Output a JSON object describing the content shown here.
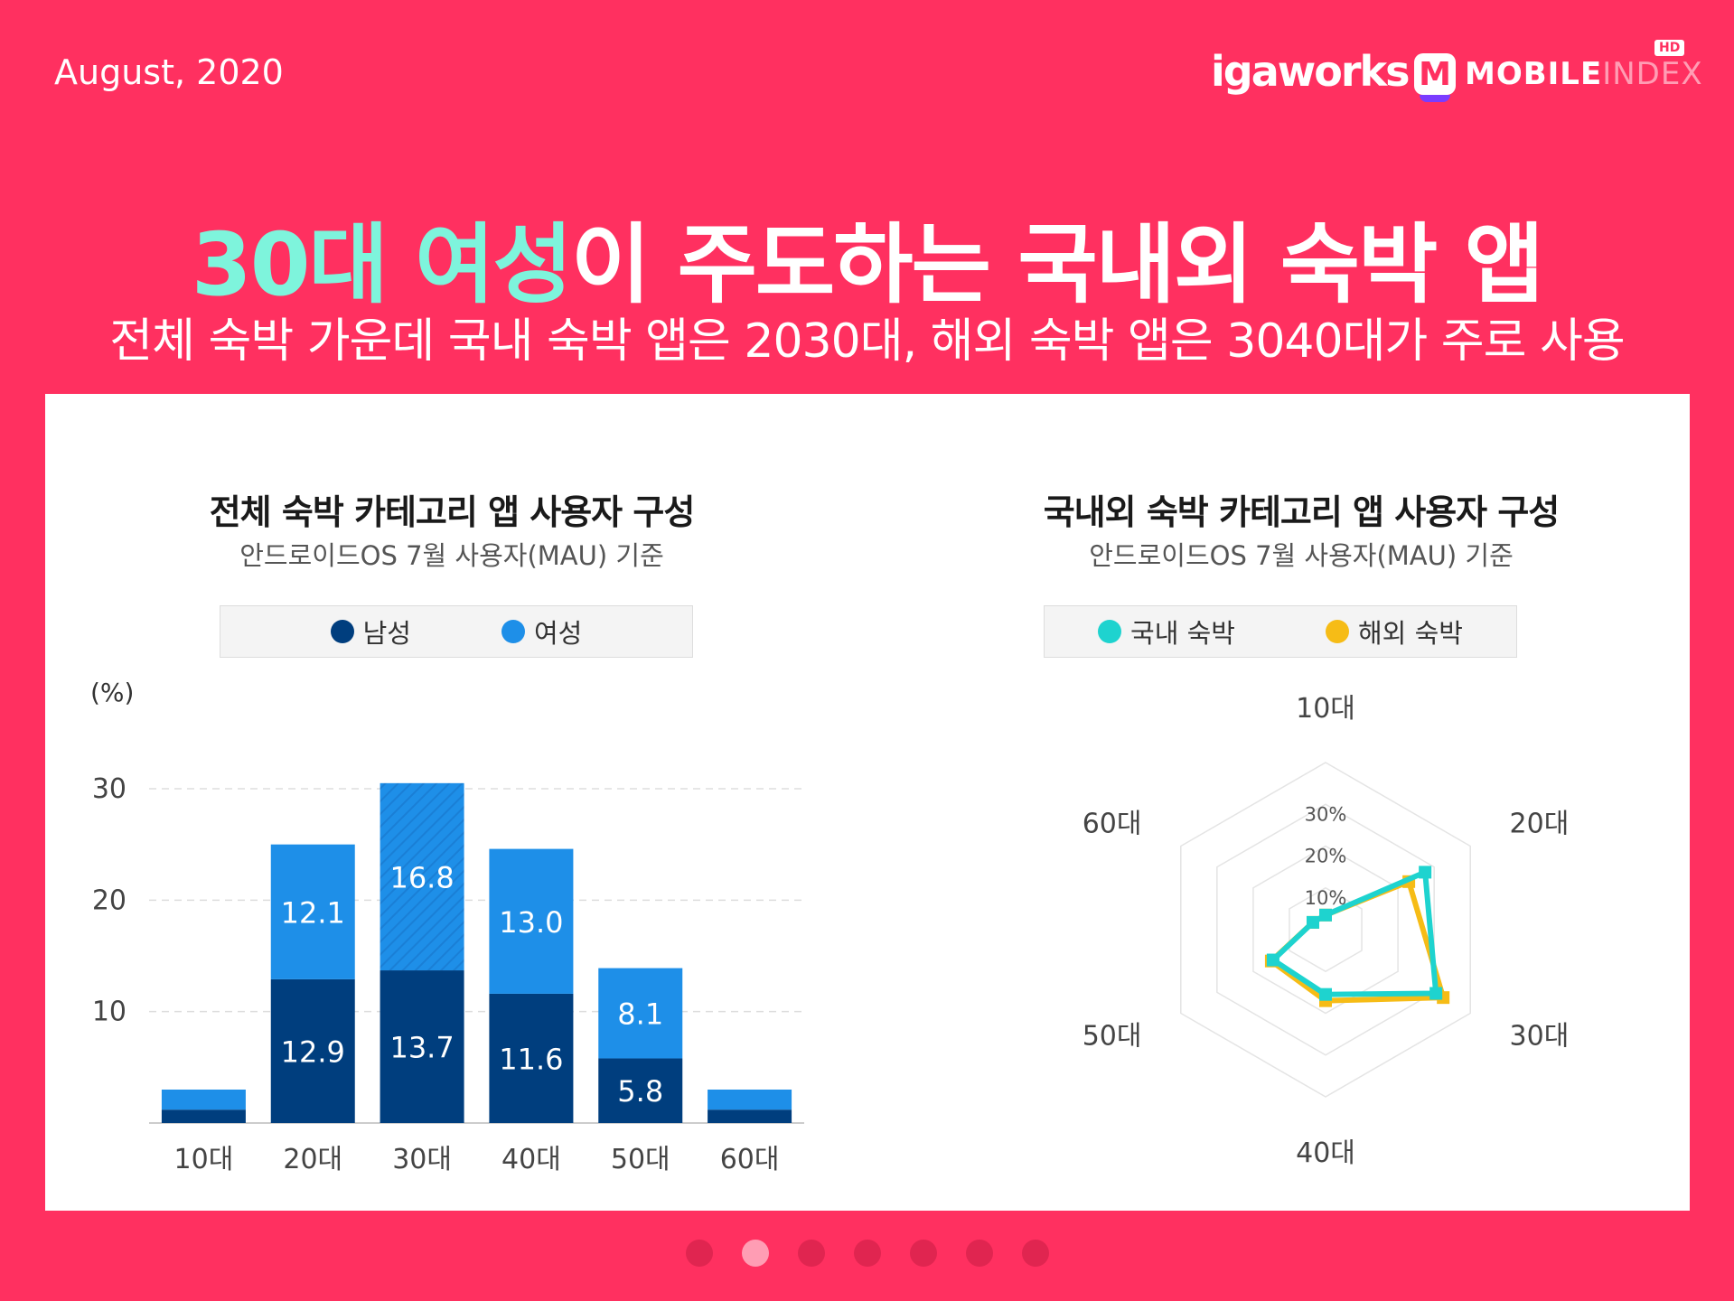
{
  "header": {
    "date": "August, 2020",
    "logo_igaworks": "igaworks",
    "logo_mobile": "MOBILE",
    "logo_index": "INDEX",
    "logo_hd": "HD"
  },
  "headline": {
    "highlight": "30대 여성",
    "rest": "이 주도하는 국내외 숙박 앱"
  },
  "subheadline": "전체 숙박 가운데 국내 숙박 앱은 2030대, 해외 숙박 앱은 3040대가 주로 사용",
  "colors": {
    "background": "#FF3060",
    "highlight": "#7EF4DC",
    "male": "#003E7E",
    "female": "#1E8FE8",
    "domestic": "#1ED3CF",
    "overseas": "#F6BC16"
  },
  "chart_data": [
    {
      "type": "bar",
      "stacked": true,
      "title": "전체 숙박 카테고리 앱 사용자 구성",
      "subtitle": "안드로이드OS 7월 사용자(MAU) 기준",
      "ylabel": "(%)",
      "ylim": [
        0,
        30
      ],
      "yticks": [
        10,
        20,
        30
      ],
      "categories": [
        "10대",
        "20대",
        "30대",
        "40대",
        "50대",
        "60대"
      ],
      "series": [
        {
          "name": "남성",
          "values": [
            1.2,
            12.9,
            13.7,
            11.6,
            5.8,
            1.2
          ],
          "labels": [
            "",
            "12.9",
            "13.7",
            "11.6",
            "5.8",
            ""
          ]
        },
        {
          "name": "여성",
          "values": [
            1.8,
            12.1,
            16.8,
            13.0,
            8.1,
            1.8
          ],
          "labels": [
            "",
            "12.1",
            "16.8",
            "13.0",
            "8.1",
            ""
          ]
        }
      ],
      "legend": [
        "남성",
        "여성"
      ]
    },
    {
      "type": "radar",
      "title": "국내외 숙박 카테고리 앱 사용자 구성",
      "subtitle": "안드로이드OS 7월 사용자(MAU) 기준",
      "axes": [
        "10대",
        "20대",
        "30대",
        "40대",
        "50대",
        "60대"
      ],
      "rings": [
        "10%",
        "20%",
        "30%"
      ],
      "rmax": 40,
      "series": [
        {
          "name": "국내 숙박",
          "values": [
            3.5,
            27.5,
            30.5,
            15.5,
            14.5,
            3.5
          ]
        },
        {
          "name": "해외 숙박",
          "values": [
            3.5,
            23.0,
            32.5,
            17.0,
            15.0,
            3.5
          ]
        }
      ],
      "legend": [
        "국내 숙박",
        "해외 숙박"
      ]
    }
  ],
  "pager": {
    "count": 7,
    "active_index": 1
  }
}
